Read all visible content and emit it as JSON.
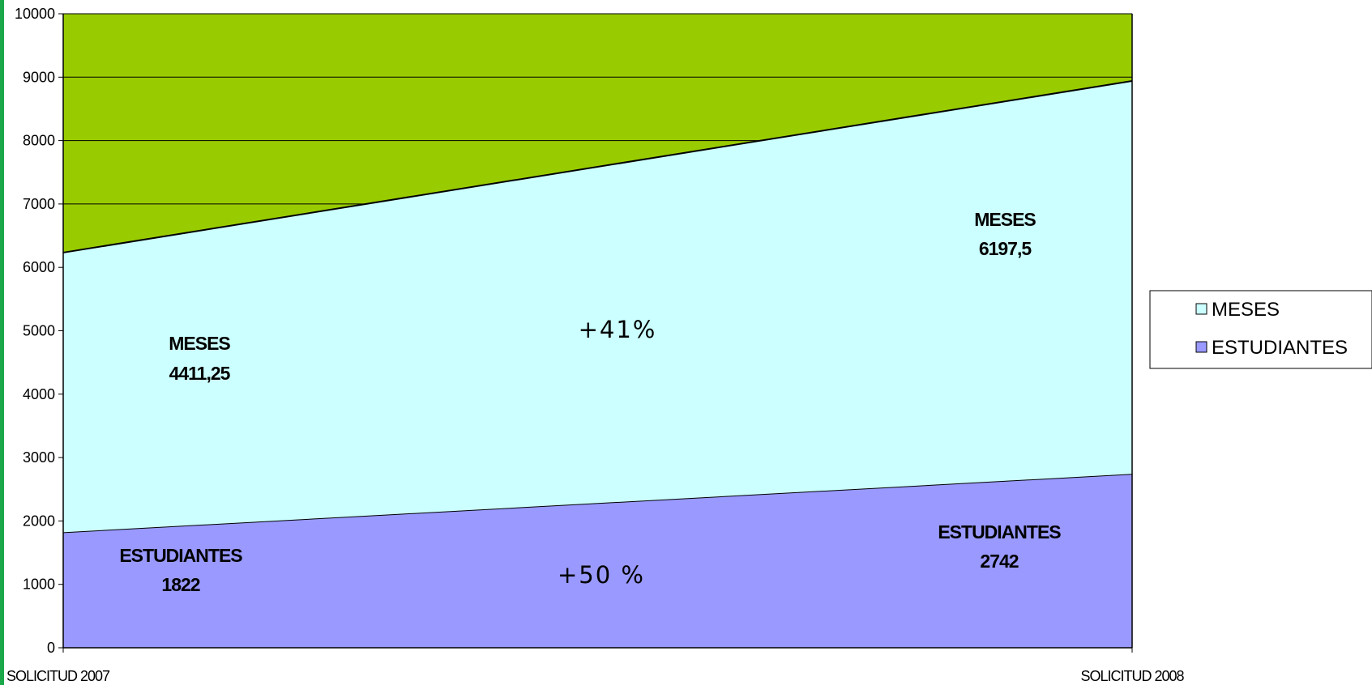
{
  "chart_data": {
    "type": "area",
    "stacked": true,
    "categories": [
      "SOLICITUD 2007",
      "SOLICITUD 2008"
    ],
    "series": [
      {
        "name": "ESTUDIANTES",
        "values": [
          1822,
          2742
        ],
        "color": "#9999ff"
      },
      {
        "name": "MESES",
        "values": [
          4411.25,
          6197.5
        ],
        "color": "#ccffff"
      }
    ],
    "plot_background": "#99cc00",
    "ylim": [
      0,
      10000
    ],
    "yticks": [
      "0",
      "1000",
      "2000",
      "3000",
      "4000",
      "5000",
      "6000",
      "7000",
      "8000",
      "9000",
      "10000"
    ],
    "grid": true,
    "legend_position": "right",
    "annotations": {
      "meses_2007": {
        "name": "MESES",
        "value": "4411,25"
      },
      "meses_2008": {
        "name": "MESES",
        "value": "6197,5"
      },
      "estudiantes_2007": {
        "name": "ESTUDIANTES",
        "value": "1822"
      },
      "estudiantes_2008": {
        "name": "ESTUDIANTES",
        "value": "2742"
      },
      "meses_change": "+41%",
      "estudiantes_change": "+50 %"
    },
    "title": "",
    "xlabel": "",
    "ylabel": ""
  }
}
